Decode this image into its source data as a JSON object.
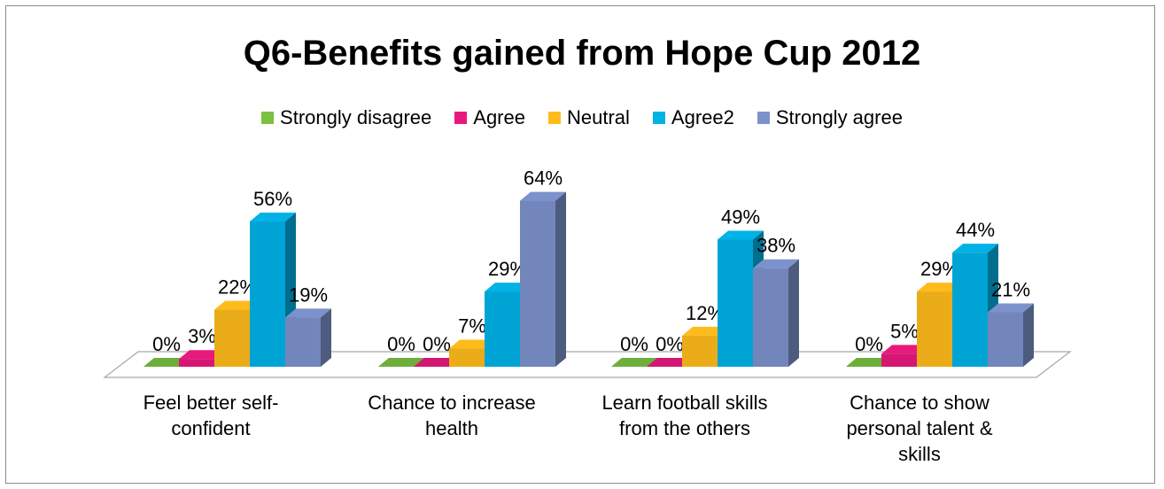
{
  "chart_data": {
    "type": "bar",
    "title": "Q6-Benefits gained from Hope Cup 2012",
    "categories": [
      "Feel better self-\nconfident",
      "Chance to increase\nhealth",
      "Learn football skills\nfrom the others",
      "Chance to show\npersonal talent &\nskills"
    ],
    "series": [
      {
        "name": "Strongly disagree",
        "values": [
          0,
          0,
          0,
          0
        ],
        "labels": [
          "0%",
          "0%",
          "0%",
          "0%"
        ],
        "color": "#7ac142"
      },
      {
        "name": "Agree",
        "values": [
          3,
          0,
          0,
          5
        ],
        "labels": [
          "3%",
          "0%",
          "0%",
          "5%"
        ],
        "color": "#e8197d"
      },
      {
        "name": "Neutral",
        "values": [
          22,
          7,
          12,
          29
        ],
        "labels": [
          "22%",
          "7%",
          "12%",
          "29%"
        ],
        "color": "#ffbb1c"
      },
      {
        "name": "Agree2",
        "values": [
          56,
          29,
          49,
          44
        ],
        "labels": [
          "56%",
          "29%",
          "49%",
          "44%"
        ],
        "color": "#00b2e6"
      },
      {
        "name": "Strongly agree",
        "values": [
          19,
          64,
          38,
          21
        ],
        "labels": [
          "19%",
          "64%",
          "38%",
          "21%"
        ],
        "color": "#7c92cc"
      }
    ],
    "ylim": [
      0,
      70
    ],
    "legend_position": "top",
    "grid": false
  }
}
